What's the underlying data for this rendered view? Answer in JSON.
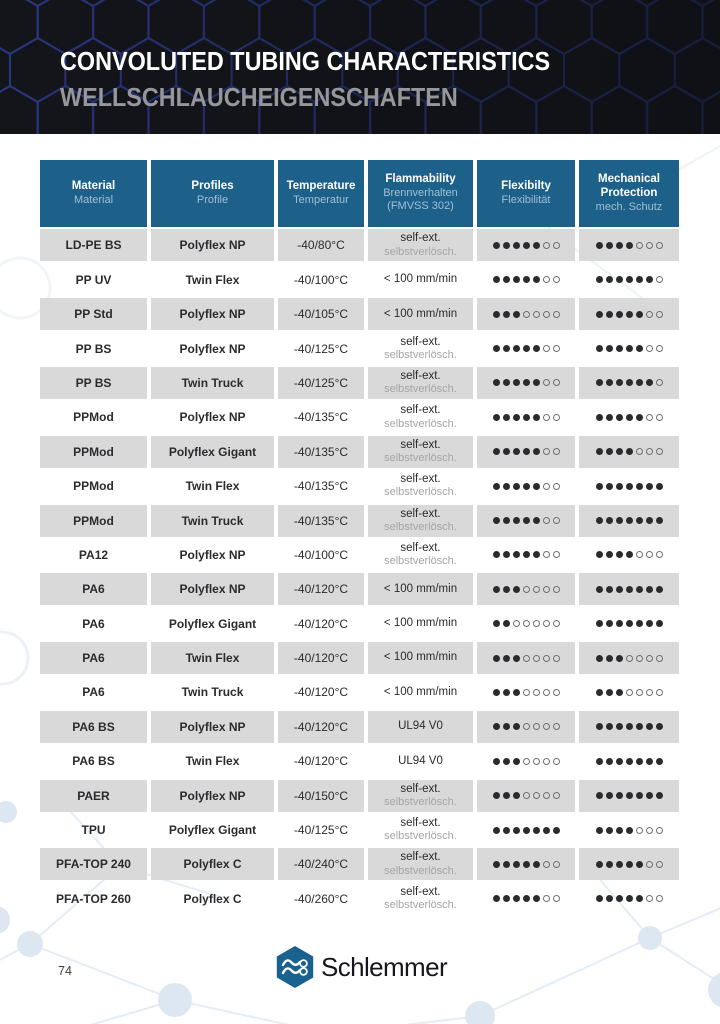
{
  "colors": {
    "banner_bg": "#14161b",
    "banner_hex_line": "#3040a0",
    "table_header_bg": "#1d618b",
    "table_header_secondary_text": "#9fbfd3",
    "row_alt_bg": "#d9d9d9",
    "text_dark": "#2b2b2e",
    "text_muted": "#a5a5a5",
    "brand_blue": "#19618e",
    "decor_light_blue": "#dde7f2"
  },
  "banner": {
    "title": "CONVOLUTED TUBING CHARACTERISTICS",
    "subtitle": "WELLSCHLAUCHEIGENSCHAFTEN"
  },
  "table": {
    "rating_scale": 7,
    "columns": [
      {
        "primary": [
          "Material"
        ],
        "secondary": [
          "Material"
        ]
      },
      {
        "primary": [
          "Profiles"
        ],
        "secondary": [
          "Profile"
        ]
      },
      {
        "primary": [
          "Temperature"
        ],
        "secondary": [
          "Temperatur"
        ]
      },
      {
        "primary": [
          "Flammability"
        ],
        "secondary": [
          "Brennverhalten",
          "(FMVSS 302)"
        ]
      },
      {
        "primary": [
          "Flexibilty"
        ],
        "secondary": [
          "Flexibilität"
        ]
      },
      {
        "primary": [
          "Mechanical",
          "Protection"
        ],
        "secondary": [
          "mech. Schutz"
        ]
      }
    ],
    "rows": [
      {
        "material": "LD-PE BS",
        "profile": "Polyflex NP",
        "temperature": "-40/80°C",
        "flammability": "self-ext.",
        "flammability_de": "selbstverlösch.",
        "flexibility": 5,
        "mechanical": 4
      },
      {
        "material": "PP UV",
        "profile": "Twin Flex",
        "temperature": "-40/100°C",
        "flammability": "< 100 mm/min",
        "flammability_de": "",
        "flexibility": 5,
        "mechanical": 6
      },
      {
        "material": "PP Std",
        "profile": "Polyflex NP",
        "temperature": "-40/105°C",
        "flammability": "< 100 mm/min",
        "flammability_de": "",
        "flexibility": 3,
        "mechanical": 5
      },
      {
        "material": "PP BS",
        "profile": "Polyflex NP",
        "temperature": "-40/125°C",
        "flammability": "self-ext.",
        "flammability_de": "selbstverlösch.",
        "flexibility": 5,
        "mechanical": 5
      },
      {
        "material": "PP BS",
        "profile": "Twin Truck",
        "temperature": "-40/125°C",
        "flammability": "self-ext.",
        "flammability_de": "selbstverlösch.",
        "flexibility": 5,
        "mechanical": 6
      },
      {
        "material": "PPMod",
        "profile": "Polyflex NP",
        "temperature": "-40/135°C",
        "flammability": "self-ext.",
        "flammability_de": "selbstverlösch.",
        "flexibility": 5,
        "mechanical": 5
      },
      {
        "material": "PPMod",
        "profile": "Polyflex Gigant",
        "temperature": "-40/135°C",
        "flammability": "self-ext.",
        "flammability_de": "selbstverlösch.",
        "flexibility": 5,
        "mechanical": 4
      },
      {
        "material": "PPMod",
        "profile": "Twin Flex",
        "temperature": "-40/135°C",
        "flammability": "self-ext.",
        "flammability_de": "selbstverlösch.",
        "flexibility": 5,
        "mechanical": 7
      },
      {
        "material": "PPMod",
        "profile": "Twin Truck",
        "temperature": "-40/135°C",
        "flammability": "self-ext.",
        "flammability_de": "selbstverlösch.",
        "flexibility": 5,
        "mechanical": 7
      },
      {
        "material": "PA12",
        "profile": "Polyflex NP",
        "temperature": "-40/100°C",
        "flammability": "self-ext.",
        "flammability_de": "selbstverlösch.",
        "flexibility": 5,
        "mechanical": 4
      },
      {
        "material": "PA6",
        "profile": "Polyflex NP",
        "temperature": "-40/120°C",
        "flammability": "< 100 mm/min",
        "flammability_de": "",
        "flexibility": 3,
        "mechanical": 7
      },
      {
        "material": "PA6",
        "profile": "Polyflex Gigant",
        "temperature": "-40/120°C",
        "flammability": "< 100 mm/min",
        "flammability_de": "",
        "flexibility": 2,
        "mechanical": 7
      },
      {
        "material": "PA6",
        "profile": "Twin Flex",
        "temperature": "-40/120°C",
        "flammability": "< 100 mm/min",
        "flammability_de": "",
        "flexibility": 3,
        "mechanical": 3
      },
      {
        "material": "PA6",
        "profile": "Twin Truck",
        "temperature": "-40/120°C",
        "flammability": "< 100 mm/min",
        "flammability_de": "",
        "flexibility": 3,
        "mechanical": 3
      },
      {
        "material": "PA6 BS",
        "profile": "Polyflex NP",
        "temperature": "-40/120°C",
        "flammability": "UL94 V0",
        "flammability_de": "",
        "flexibility": 3,
        "mechanical": 7
      },
      {
        "material": "PA6 BS",
        "profile": "Twin Flex",
        "temperature": "-40/120°C",
        "flammability": "UL94 V0",
        "flammability_de": "",
        "flexibility": 3,
        "mechanical": 7
      },
      {
        "material": "PAER",
        "profile": "Polyflex NP",
        "temperature": "-40/150°C",
        "flammability": "self-ext.",
        "flammability_de": "selbstverlösch.",
        "flexibility": 3,
        "mechanical": 7
      },
      {
        "material": "TPU",
        "profile": "Polyflex Gigant",
        "temperature": "-40/125°C",
        "flammability": "self-ext.",
        "flammability_de": "selbstverlösch.",
        "flexibility": 7,
        "mechanical": 4
      },
      {
        "material": "PFA-TOP 240",
        "profile": "Polyflex C",
        "temperature": "-40/240°C",
        "flammability": "self-ext.",
        "flammability_de": "selbstverlösch.",
        "flexibility": 5,
        "mechanical": 5
      },
      {
        "material": "PFA-TOP 260",
        "profile": "Polyflex C",
        "temperature": "-40/260°C",
        "flammability": "self-ext.",
        "flammability_de": "selbstverlösch.",
        "flexibility": 5,
        "mechanical": 5
      }
    ]
  },
  "footer": {
    "page_number": "74",
    "brand": "Schlemmer"
  }
}
